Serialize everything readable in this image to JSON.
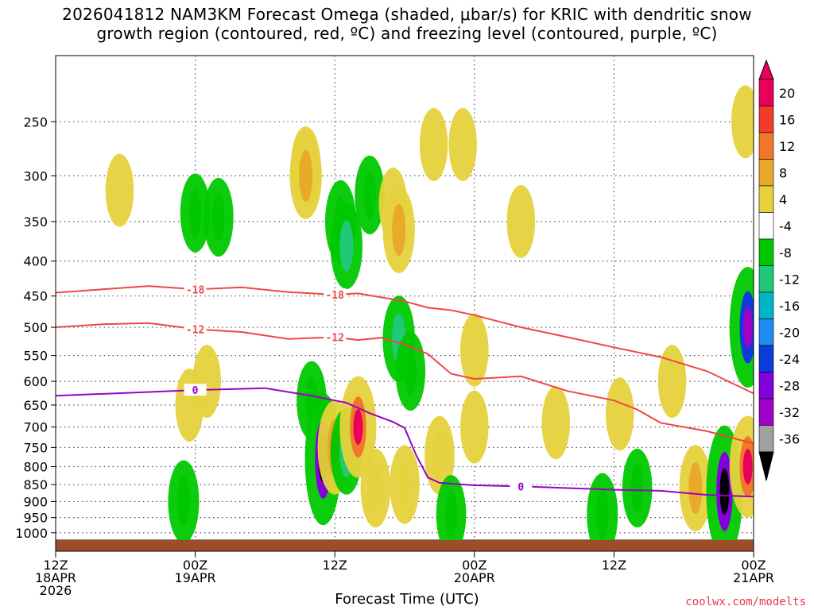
{
  "title_line1": "2026041812 NAM3KM Forecast Omega (shaded, μbar/s) for KRIC with dendritic snow",
  "title_line2": "growth region (contoured, red, ºC) and freezing level (contoured, purple, ºC)",
  "xlabel": "Forecast Time (UTC)",
  "credit": "coolwx.com/modelts",
  "chart_data": {
    "type": "heatmap",
    "title": "2026041812 NAM3KM Forecast Omega (shaded, μbar/s) for KRIC with dendritic snow growth region (contoured, red, ºC) and freezing level (contoured, purple, ºC)",
    "xlabel": "Forecast Time (UTC)",
    "ylabel": "",
    "y_scale": "log (pressure, hPa)",
    "ylim": [
      1025,
      200
    ],
    "xlim_hours": [
      0,
      60
    ],
    "y_ticks": [
      250,
      300,
      350,
      400,
      450,
      500,
      550,
      600,
      650,
      700,
      750,
      800,
      850,
      900,
      950,
      1000
    ],
    "x_ticks": [
      {
        "hour": 0,
        "lines": [
          "12Z",
          "18APR",
          "2026"
        ]
      },
      {
        "hour": 12,
        "lines": [
          "00Z",
          "19APR"
        ]
      },
      {
        "hour": 24,
        "lines": [
          "12Z"
        ]
      },
      {
        "hour": 36,
        "lines": [
          "00Z",
          "20APR"
        ]
      },
      {
        "hour": 48,
        "lines": [
          "12Z"
        ]
      },
      {
        "hour": 60,
        "lines": [
          "00Z",
          "21APR"
        ]
      }
    ],
    "colorbar": {
      "labels": [
        "20",
        "16",
        "12",
        "8",
        "4",
        "-4",
        "-8",
        "-12",
        "-16",
        "-20",
        "-24",
        "-28",
        "-32",
        "-36"
      ],
      "colors": [
        "#e8005a",
        "#f03c28",
        "#f07828",
        "#e8aa28",
        "#e6d23c",
        "#ffffff",
        "#00c800",
        "#20c878",
        "#00b4c8",
        "#1e8cf0",
        "#0a3cdc",
        "#8200dc",
        "#a000c8",
        "#a0a0a0",
        "#000000"
      ]
    },
    "series": [
      {
        "name": "-18",
        "color": "#f04646",
        "x": [
          0,
          4,
          8,
          12,
          16,
          20,
          24,
          26,
          28,
          30,
          32,
          34,
          36,
          40,
          44,
          48,
          52,
          56,
          60
        ],
        "y": [
          445,
          440,
          435,
          440,
          437,
          444,
          448,
          446,
          452,
          458,
          468,
          472,
          480,
          500,
          517,
          535,
          553,
          580,
          625
        ]
      },
      {
        "name": "-12",
        "color": "#f04646",
        "x": [
          0,
          4,
          8,
          12,
          16,
          20,
          24,
          26,
          28,
          30,
          32,
          34,
          36,
          40,
          44,
          48,
          50,
          52,
          56,
          60
        ],
        "y": [
          500,
          495,
          493,
          503,
          508,
          520,
          517,
          522,
          518,
          530,
          547,
          585,
          595,
          590,
          620,
          640,
          660,
          690,
          710,
          740
        ]
      },
      {
        "name": "0",
        "color": "#9a00c8",
        "x": [
          0,
          6,
          12,
          18,
          22,
          25,
          27,
          29,
          30,
          31,
          32,
          33,
          36,
          40,
          44,
          48,
          52,
          56,
          60
        ],
        "y": [
          630,
          624,
          618,
          614,
          630,
          645,
          668,
          688,
          702,
          770,
          830,
          845,
          852,
          855,
          860,
          865,
          868,
          880,
          885
        ]
      }
    ],
    "omega_cells": [
      {
        "x": 5.5,
        "p": 315,
        "v": 5
      },
      {
        "x": 12,
        "p": 340,
        "v": -8
      },
      {
        "x": 14,
        "p": 345,
        "v": -8
      },
      {
        "x": 21.5,
        "p": 290,
        "v": 8
      },
      {
        "x": 21.5,
        "p": 300,
        "v": 12
      },
      {
        "x": 24.5,
        "p": 350,
        "v": -10
      },
      {
        "x": 25,
        "p": 380,
        "v": -12
      },
      {
        "x": 27,
        "p": 320,
        "v": -8
      },
      {
        "x": 29,
        "p": 330,
        "v": 5
      },
      {
        "x": 29.5,
        "p": 360,
        "v": 12
      },
      {
        "x": 32.5,
        "p": 270,
        "v": 5
      },
      {
        "x": 35,
        "p": 270,
        "v": 5
      },
      {
        "x": 40,
        "p": 350,
        "v": 5
      },
      {
        "x": 29.5,
        "p": 520,
        "v": -12
      },
      {
        "x": 30.5,
        "p": 580,
        "v": -8
      },
      {
        "x": 36,
        "p": 540,
        "v": 5
      },
      {
        "x": 11.5,
        "p": 650,
        "v": 5
      },
      {
        "x": 13,
        "p": 600,
        "v": 5
      },
      {
        "x": 22,
        "p": 640,
        "v": -8
      },
      {
        "x": 23,
        "p": 780,
        "v": -36
      },
      {
        "x": 24,
        "p": 750,
        "v": 16
      },
      {
        "x": 25,
        "p": 760,
        "v": -12
      },
      {
        "x": 26,
        "p": 700,
        "v": 20
      },
      {
        "x": 27.5,
        "p": 860,
        "v": 8
      },
      {
        "x": 30,
        "p": 850,
        "v": 8
      },
      {
        "x": 33,
        "p": 770,
        "v": 8
      },
      {
        "x": 36,
        "p": 700,
        "v": 5
      },
      {
        "x": 11,
        "p": 900,
        "v": -10
      },
      {
        "x": 34,
        "p": 940,
        "v": -8
      },
      {
        "x": 47,
        "p": 940,
        "v": -10
      },
      {
        "x": 50,
        "p": 860,
        "v": -8
      },
      {
        "x": 55,
        "p": 860,
        "v": 12
      },
      {
        "x": 57.5,
        "p": 870,
        "v": -36
      },
      {
        "x": 59.5,
        "p": 800,
        "v": 20
      },
      {
        "x": 59.5,
        "p": 500,
        "v": -30
      },
      {
        "x": 59.3,
        "p": 250,
        "v": 5
      },
      {
        "x": 43,
        "p": 690,
        "v": 5
      },
      {
        "x": 48.5,
        "p": 670,
        "v": 5
      },
      {
        "x": 53,
        "p": 600,
        "v": 5
      }
    ]
  }
}
